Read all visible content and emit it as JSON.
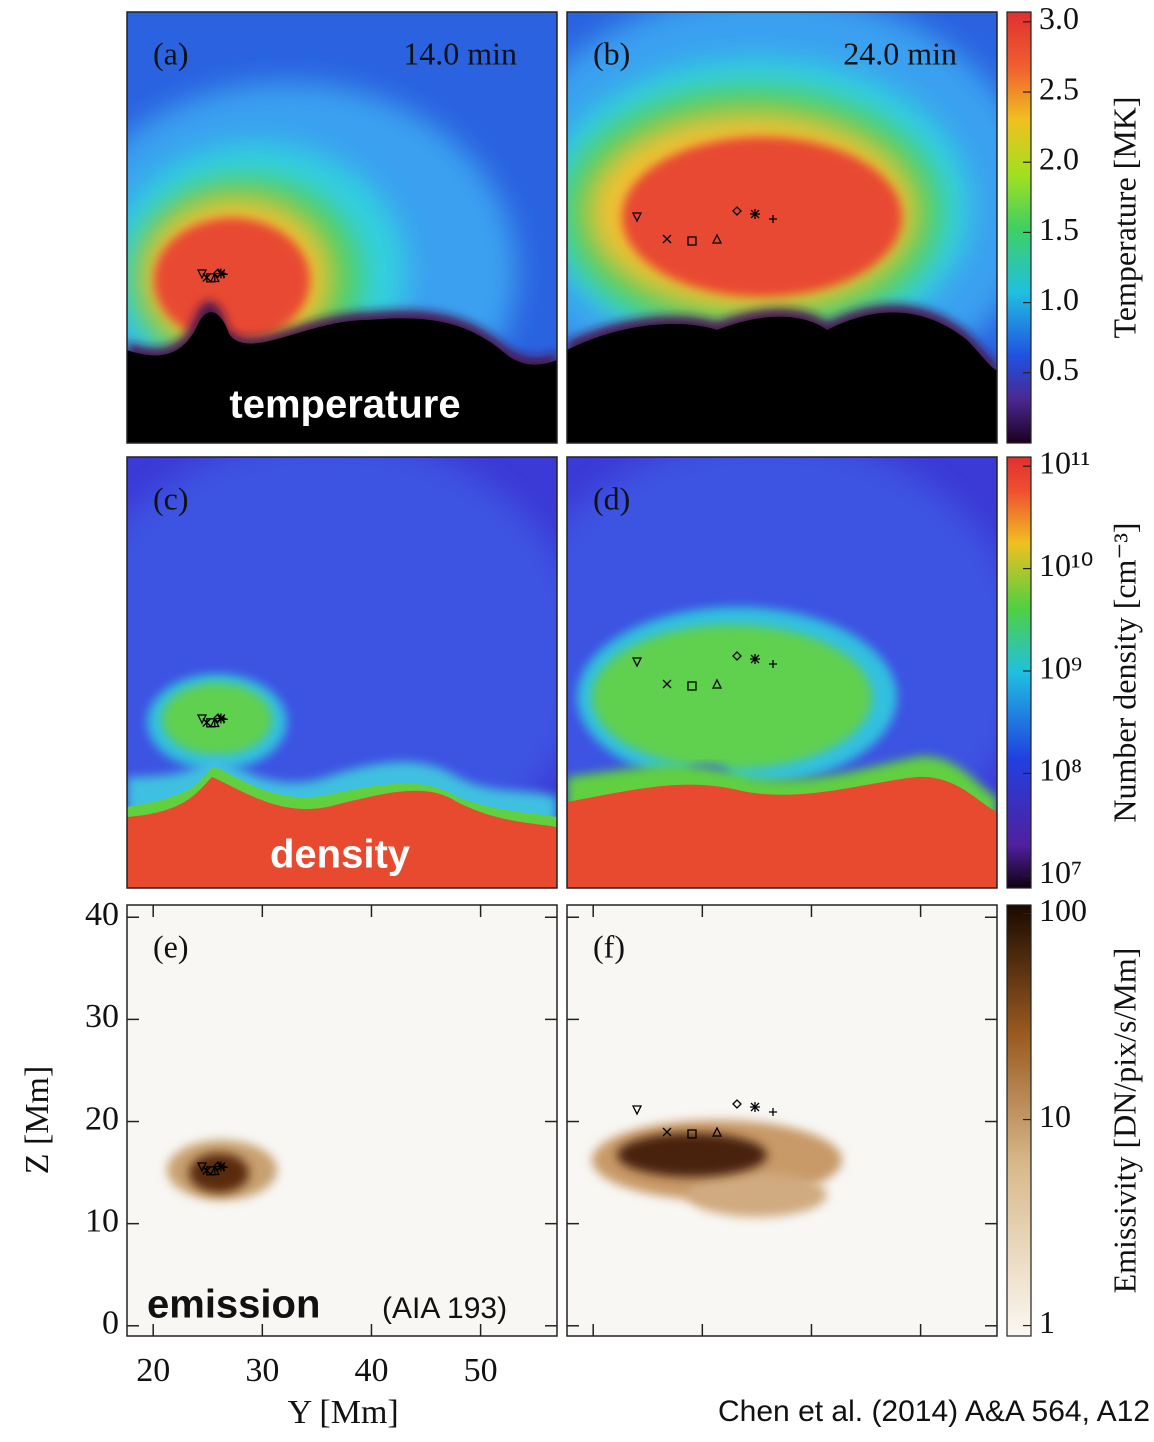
{
  "panels": [
    {
      "label": "(a)",
      "time": "14.0 min"
    },
    {
      "label": "(b)",
      "time": "24.0 min"
    },
    {
      "label": "(c)"
    },
    {
      "label": "(d)"
    },
    {
      "label": "(e)"
    },
    {
      "label": "(f)"
    }
  ],
  "row_labels": [
    "temperature",
    "density",
    "emission"
  ],
  "emission_note": "(AIA 193)",
  "axes": {
    "xlabel": "Y [Mm]",
    "ylabel": "Z [Mm]",
    "xlim": [
      17.6,
      57
    ],
    "xticks": [
      20,
      30,
      40,
      50
    ],
    "ylim": [
      -1,
      41.2
    ],
    "yticks": [
      0,
      10,
      20,
      30,
      40
    ]
  },
  "colorbars": [
    {
      "label": "Temperature [MK]",
      "log": false,
      "lim": [
        0,
        3.07
      ],
      "ticks": [
        {
          "value": 0.5,
          "label": "0.5"
        },
        {
          "value": 1,
          "label": "1.0"
        },
        {
          "value": 1.5,
          "label": "1.5"
        },
        {
          "value": 2,
          "label": "2.0"
        },
        {
          "value": 2.5,
          "label": "2.5"
        },
        {
          "value": 3,
          "label": "3.0"
        }
      ]
    },
    {
      "label": "Number density [cm⁻³]",
      "log": true,
      "lim": [
        7600000,
        123000000000
      ],
      "ticks": [
        {
          "value": 10000000,
          "label": "10⁷"
        },
        {
          "value": 100000000,
          "label": "10⁸"
        },
        {
          "value": 1000000000,
          "label": "10⁹"
        },
        {
          "value": 10000000000,
          "label": "10¹⁰"
        },
        {
          "value": 100000000000,
          "label": "10¹¹"
        }
      ]
    },
    {
      "label": "Emissivity [DN/pix/s/Mm]",
      "log": true,
      "lim": [
        0.89,
        110
      ],
      "ticks": [
        1,
        10,
        100
      ]
    }
  ],
  "credit": "Chen et al. (2014) A&A 564, A12"
}
